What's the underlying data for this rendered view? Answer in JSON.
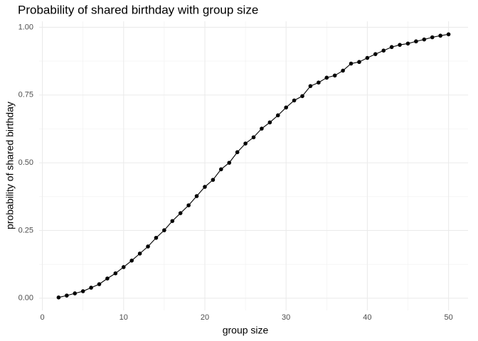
{
  "chart_data": {
    "type": "line",
    "title": "Probability of shared birthday with group size",
    "x_label": "group size",
    "y_label": "probability of shared birthday",
    "x": [
      2,
      3,
      4,
      5,
      6,
      7,
      8,
      9,
      10,
      11,
      12,
      13,
      14,
      15,
      16,
      17,
      18,
      19,
      20,
      21,
      22,
      23,
      24,
      25,
      26,
      27,
      28,
      29,
      30,
      31,
      32,
      33,
      34,
      35,
      36,
      37,
      38,
      39,
      40,
      41,
      42,
      43,
      44,
      45,
      46,
      47,
      48,
      49,
      50
    ],
    "series": [
      {
        "color": "#000000",
        "values": [
          0.003,
          0.01,
          0.018,
          0.026,
          0.039,
          0.052,
          0.073,
          0.092,
          0.115,
          0.139,
          0.165,
          0.191,
          0.223,
          0.251,
          0.285,
          0.314,
          0.343,
          0.377,
          0.411,
          0.437,
          0.476,
          0.5,
          0.539,
          0.571,
          0.594,
          0.626,
          0.649,
          0.675,
          0.704,
          0.73,
          0.746,
          0.783,
          0.796,
          0.814,
          0.822,
          0.84,
          0.866,
          0.872,
          0.887,
          0.901,
          0.914,
          0.927,
          0.935,
          0.94,
          0.948,
          0.955,
          0.963,
          0.969,
          0.974
        ]
      }
    ],
    "xlim": [
      -0.4,
      52.4
    ],
    "ylim": [
      -0.045,
      1.022
    ],
    "xticks": [
      0,
      10,
      20,
      30,
      40,
      50
    ],
    "yticks": [
      {
        "value": 0,
        "label": "0.00"
      },
      {
        "value": 0.25,
        "label": "0.25"
      },
      {
        "value": 0.5,
        "label": "0.50"
      },
      {
        "value": 0.75,
        "label": "0.75"
      },
      {
        "value": 1,
        "label": "1.00"
      }
    ],
    "grid": true
  }
}
